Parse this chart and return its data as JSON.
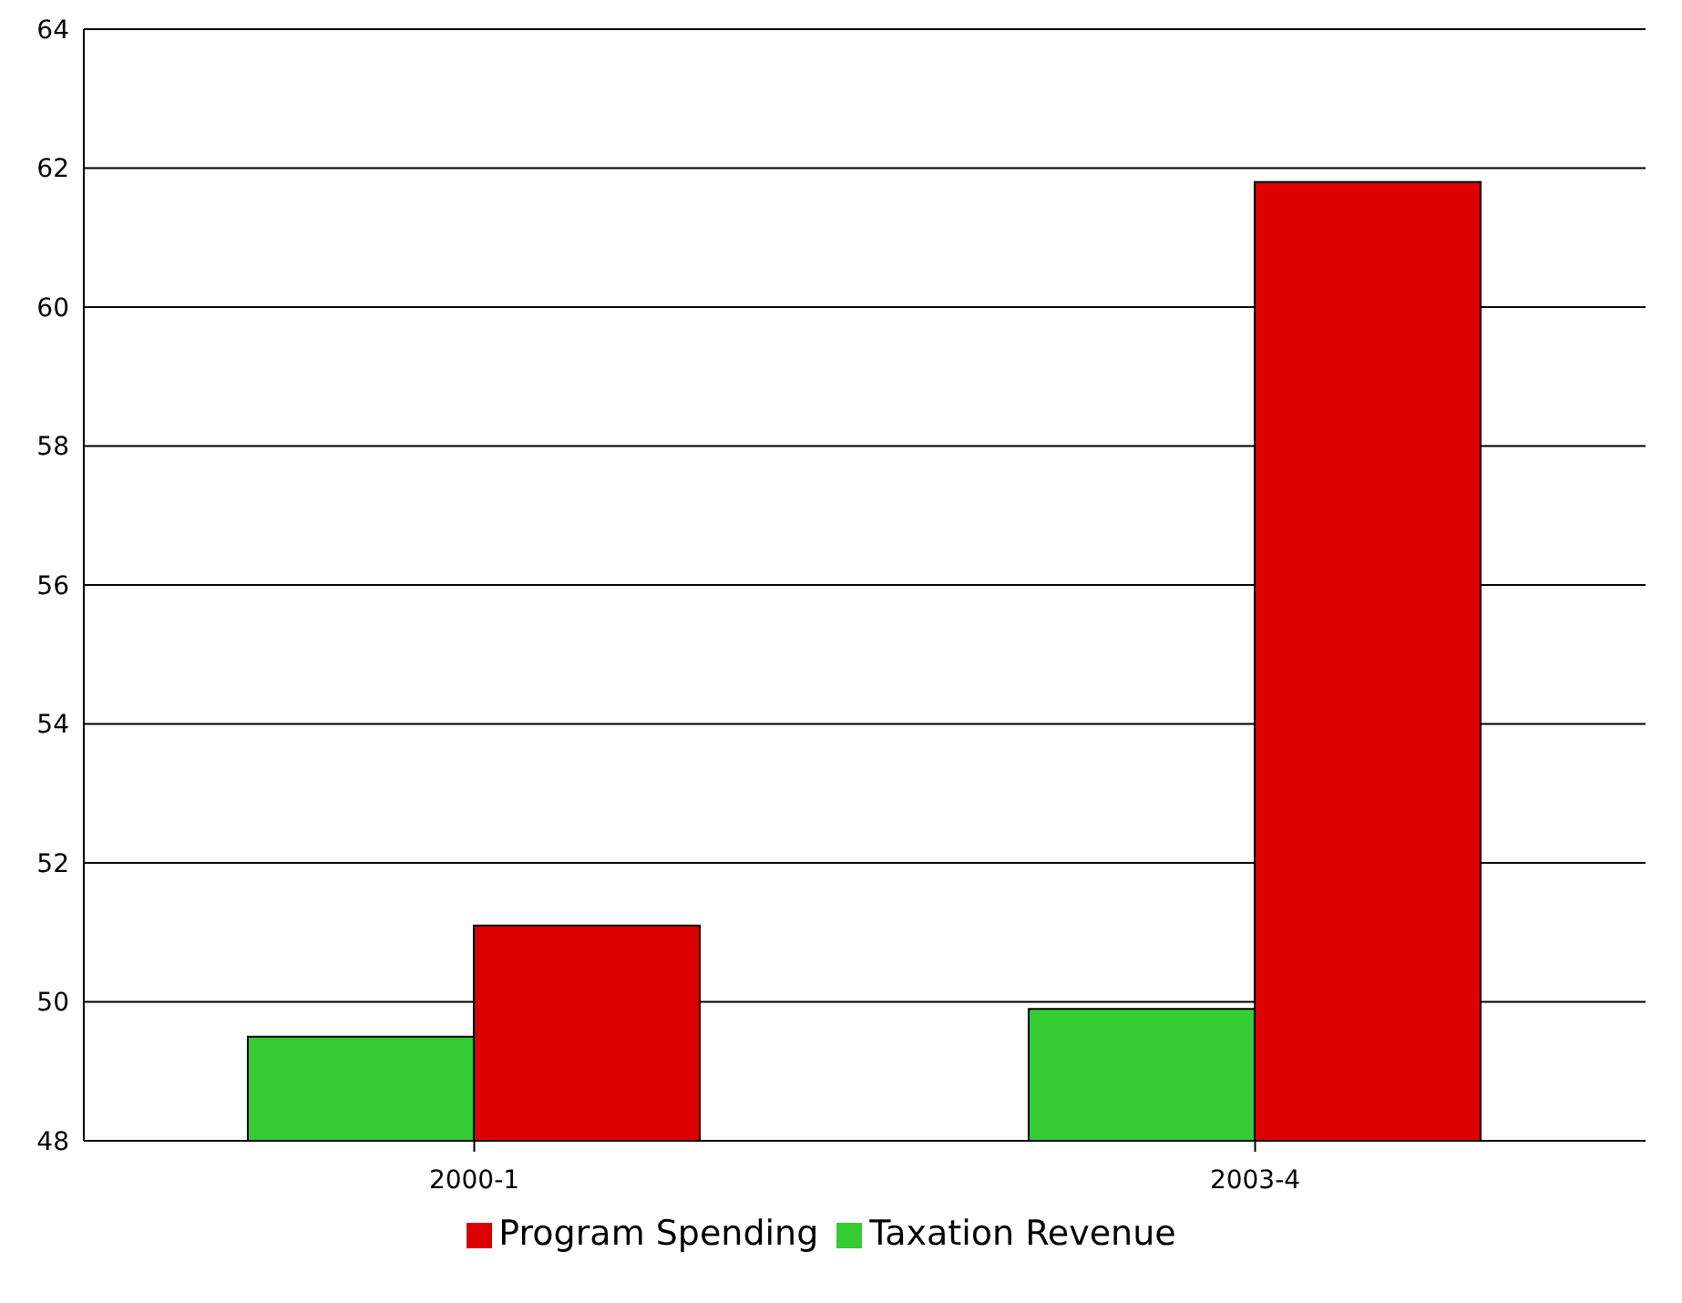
{
  "chart_data": {
    "type": "bar",
    "categories": [
      "2000-1",
      "2003-4"
    ],
    "series": [
      {
        "name": "Taxation Revenue",
        "color": "#33cc33",
        "values": [
          49.5,
          49.9
        ]
      },
      {
        "name": "Program Spending",
        "color": "#dd0000",
        "values": [
          51.1,
          61.8
        ]
      }
    ],
    "ylim": [
      48,
      64
    ],
    "yticks": [
      48,
      50,
      52,
      54,
      56,
      58,
      60,
      62,
      64
    ],
    "grid": "y",
    "legend": "bottom"
  }
}
